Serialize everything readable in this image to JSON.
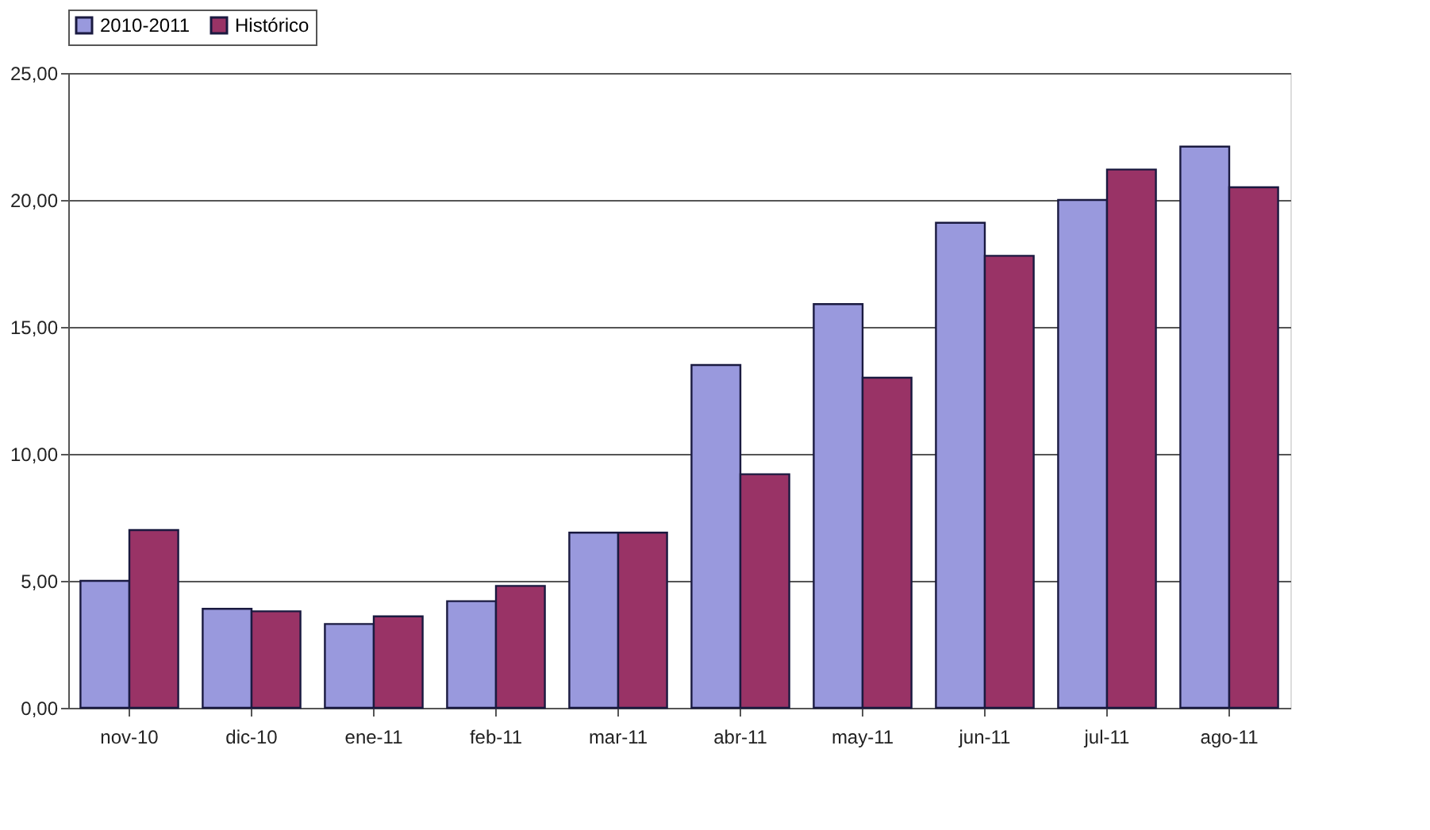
{
  "chart_data": {
    "type": "bar",
    "categories": [
      "nov-10",
      "dic-10",
      "ene-11",
      "feb-11",
      "mar-11",
      "abr-11",
      "may-11",
      "jun-11",
      "jul-11",
      "ago-11"
    ],
    "series": [
      {
        "name": "2010-2011",
        "color": "#9999dd",
        "values": [
          5.0,
          3.9,
          3.3,
          4.2,
          6.9,
          13.5,
          15.9,
          19.1,
          20.0,
          22.1
        ]
      },
      {
        "name": "Histórico",
        "color": "#993366",
        "values": [
          7.0,
          3.8,
          3.6,
          4.8,
          6.9,
          9.2,
          13.0,
          17.8,
          21.2,
          20.5
        ]
      }
    ],
    "ylim": [
      0,
      25
    ],
    "yticks": [
      {
        "value": 0,
        "label": "0,00"
      },
      {
        "value": 5,
        "label": "5,00"
      },
      {
        "value": 10,
        "label": "10,00"
      },
      {
        "value": 15,
        "label": "15,00"
      },
      {
        "value": 20,
        "label": "20,00"
      },
      {
        "value": 25,
        "label": "25,00"
      }
    ],
    "grid": "y",
    "legend": "top"
  }
}
